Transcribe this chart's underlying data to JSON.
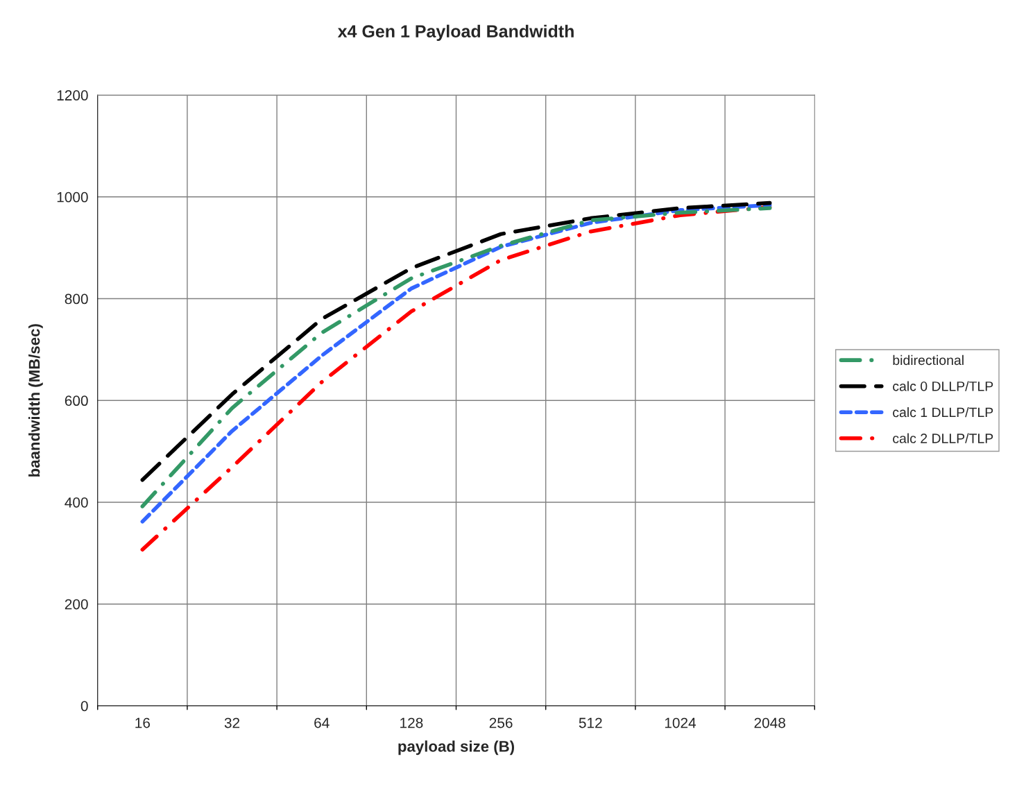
{
  "chart_data": {
    "type": "line",
    "title": "x4 Gen 1 Payload Bandwidth",
    "xlabel": "payload size (B)",
    "ylabel": "baandwidth (MB/sec)",
    "categories": [
      "16",
      "32",
      "64",
      "128",
      "256",
      "512",
      "1024",
      "2048"
    ],
    "series": [
      {
        "name": "bidirectional",
        "color": "#339966",
        "line_style": "dashdot",
        "values": [
          392,
          585,
          733,
          840,
          904,
          954,
          969,
          978
        ]
      },
      {
        "name": "calc 0 DLLP/TLP",
        "color": "#000000",
        "line_style": "dashed",
        "values": [
          444,
          612,
          760,
          860,
          927,
          958,
          978,
          988
        ]
      },
      {
        "name": "calc 1 DLLP/TLP",
        "color": "#3366ff",
        "line_style": "dotted",
        "values": [
          362,
          540,
          688,
          820,
          902,
          949,
          974,
          984
        ]
      },
      {
        "name": "calc 2 DLLP/TLP",
        "color": "#ff0000",
        "line_style": "dashdot",
        "values": [
          307,
          469,
          636,
          775,
          876,
          932,
          964,
          980
        ]
      }
    ],
    "ylim": [
      0,
      1200
    ],
    "yticks": [
      0,
      200,
      400,
      600,
      800,
      1000,
      1200
    ],
    "grid": true,
    "legend": "right",
    "marker": "none"
  }
}
